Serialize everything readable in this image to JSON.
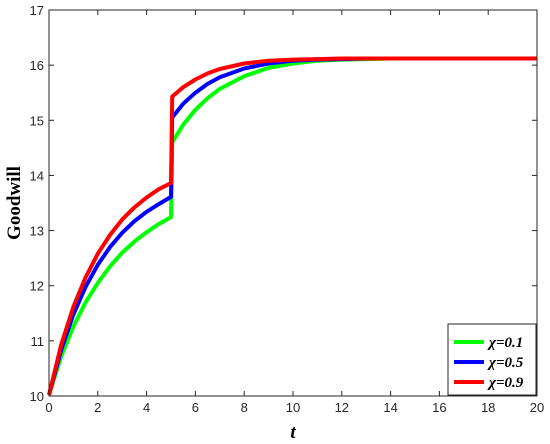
{
  "chart_data": {
    "type": "line",
    "title": "",
    "xlabel": "t",
    "ylabel": "Goodwill",
    "xlim": [
      0,
      20
    ],
    "ylim": [
      10,
      17
    ],
    "xticks": [
      0,
      2,
      4,
      6,
      8,
      10,
      12,
      14,
      16,
      18,
      20
    ],
    "yticks": [
      10,
      11,
      12,
      13,
      14,
      15,
      16,
      17
    ],
    "grid": false,
    "legend_position": "bottom-right",
    "series": [
      {
        "name": "χ=0.1",
        "color": "#00ff00",
        "x": [
          0,
          0.5,
          1,
          1.5,
          2,
          2.5,
          3,
          3.5,
          4,
          4.5,
          5,
          5.05,
          5.5,
          6,
          6.5,
          7,
          8,
          9,
          10,
          11,
          12,
          13,
          14,
          16,
          18,
          20
        ],
        "y": [
          10.02,
          10.72,
          11.26,
          11.7,
          12.05,
          12.35,
          12.6,
          12.8,
          12.97,
          13.12,
          13.24,
          14.6,
          14.92,
          15.19,
          15.4,
          15.57,
          15.8,
          15.95,
          16.03,
          16.08,
          16.1,
          16.11,
          16.12,
          16.12,
          16.12,
          16.12
        ]
      },
      {
        "name": "χ=0.5",
        "color": "#0000ff",
        "x": [
          0,
          0.5,
          1,
          1.5,
          2,
          2.5,
          3,
          3.5,
          4,
          4.5,
          5,
          5.05,
          5.5,
          6,
          6.5,
          7,
          8,
          9,
          10,
          11,
          12,
          13,
          14,
          16,
          18,
          20
        ],
        "y": [
          10.02,
          10.84,
          11.48,
          11.98,
          12.38,
          12.7,
          12.96,
          13.17,
          13.34,
          13.48,
          13.61,
          15.05,
          15.3,
          15.5,
          15.66,
          15.78,
          15.94,
          16.03,
          16.08,
          16.1,
          16.11,
          16.12,
          16.12,
          16.12,
          16.12,
          16.12
        ]
      },
      {
        "name": "χ=0.9",
        "color": "#ff0000",
        "x": [
          0,
          0.5,
          1,
          1.5,
          2,
          2.5,
          3,
          3.5,
          4,
          4.5,
          5,
          5.05,
          5.5,
          6,
          6.5,
          7,
          8,
          9,
          10,
          11,
          12,
          13,
          14,
          16,
          18,
          20
        ],
        "y": [
          10.02,
          10.93,
          11.62,
          12.15,
          12.58,
          12.92,
          13.2,
          13.42,
          13.6,
          13.75,
          13.86,
          15.43,
          15.6,
          15.74,
          15.85,
          15.93,
          16.03,
          16.08,
          16.1,
          16.11,
          16.12,
          16.12,
          16.12,
          16.12,
          16.12,
          16.12
        ]
      }
    ]
  }
}
